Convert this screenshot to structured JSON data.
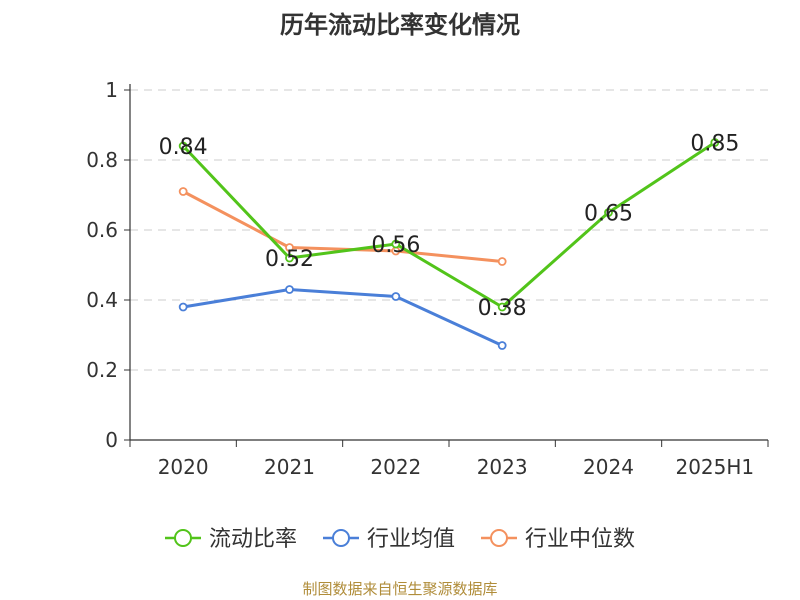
{
  "chart_data": {
    "type": "line",
    "title": "历年流动比率变化情况",
    "categories": [
      "2020",
      "2021",
      "2022",
      "2023",
      "2024",
      "2025H1"
    ],
    "ylim": [
      0,
      1
    ],
    "yticks": [
      "0",
      "0.2",
      "0.4",
      "0.6",
      "0.8",
      "1"
    ],
    "grid": true,
    "legend_position": "bottom",
    "series": [
      {
        "name": "流动比率",
        "color": "#52c41a",
        "values": [
          0.84,
          0.52,
          0.56,
          0.38,
          0.65,
          0.85
        ],
        "labels": [
          "0.84",
          "0.52",
          "0.56",
          "0.38",
          "0.65",
          "0.85"
        ],
        "show_labels": true
      },
      {
        "name": "行业均值",
        "color": "#4a7fd8",
        "values": [
          0.38,
          0.43,
          0.41,
          0.27,
          null,
          null
        ]
      },
      {
        "name": "行业中位数",
        "color": "#f4915e",
        "values": [
          0.71,
          0.55,
          0.54,
          0.51,
          null,
          null
        ]
      }
    ]
  },
  "source_note": "制图数据来自恒生聚源数据库"
}
